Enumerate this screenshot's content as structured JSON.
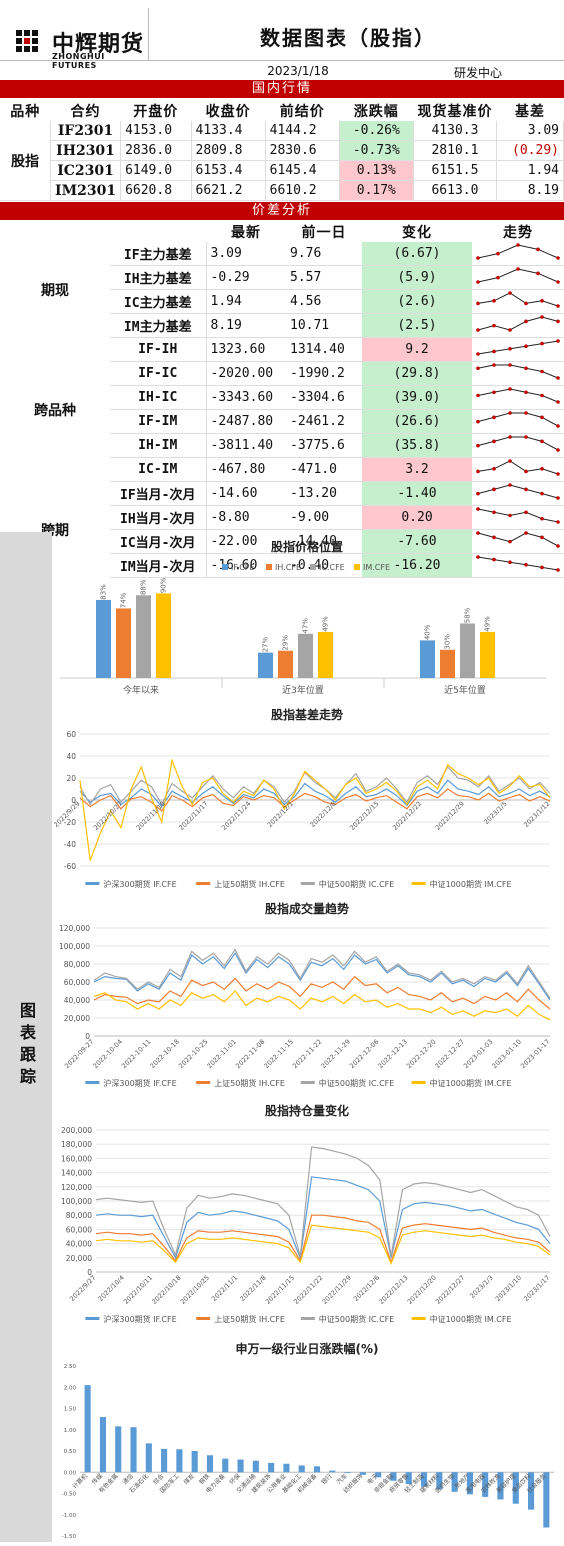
{
  "header": {
    "logo_cn": "中辉期货",
    "logo_en": "ZHONGHUI FUTURES",
    "title": "数据图表（股指）",
    "date": "2023/1/18",
    "dept": "研发中心"
  },
  "sections": {
    "domestic": "国内行情",
    "spread": "价差分析",
    "tracking": "图表跟踪"
  },
  "colors": {
    "red_bar": "#c00000",
    "green_cell": "#c6efce",
    "pink_cell": "#ffc7ce",
    "if": "#5b9bd5",
    "ih": "#ed7d31",
    "ic": "#a5a5a5",
    "im": "#ffc000"
  },
  "market": {
    "headers": [
      "品种",
      "合约",
      "开盘价",
      "收盘价",
      "前结价",
      "涨跌幅",
      "现货基准价",
      "基差"
    ],
    "group": "股指",
    "rows": [
      {
        "contract": "IF2301",
        "open": "4153.0",
        "close": "4133.4",
        "prev": "4144.2",
        "chg": "-0.26%",
        "spot": "4130.3",
        "basis": "3.09",
        "tone": "green",
        "neg": false
      },
      {
        "contract": "IH2301",
        "open": "2836.0",
        "close": "2809.8",
        "prev": "2830.6",
        "chg": "-0.73%",
        "spot": "2810.1",
        "basis": "(0.29)",
        "tone": "green",
        "neg": true
      },
      {
        "contract": "IC2301",
        "open": "6149.0",
        "close": "6153.4",
        "prev": "6145.4",
        "chg": "0.13%",
        "spot": "6151.5",
        "basis": "1.94",
        "tone": "pink",
        "neg": false
      },
      {
        "contract": "IM2301",
        "open": "6620.8",
        "close": "6621.2",
        "prev": "6610.2",
        "chg": "0.17%",
        "spot": "6613.0",
        "basis": "8.19",
        "tone": "pink",
        "neg": false
      }
    ]
  },
  "spread": {
    "headers": [
      "最新",
      "前一日",
      "变化",
      "走势"
    ],
    "groups": [
      {
        "label": "期现",
        "rows": [
          {
            "name": "IF主力基差",
            "latest": "3.09",
            "prev": "9.76",
            "chg": "(6.67)",
            "tone": "green",
            "trend": [
              3,
              4,
              6,
              5,
              3
            ]
          },
          {
            "name": "IH主力基差",
            "latest": "-0.29",
            "prev": "5.57",
            "chg": "(5.9)",
            "tone": "green",
            "trend": [
              3,
              4,
              6,
              5,
              3
            ]
          },
          {
            "name": "IC主力基差",
            "latest": "1.94",
            "prev": "4.56",
            "chg": "(2.6)",
            "tone": "green",
            "trend": [
              2,
              3,
              6,
              2,
              3,
              1
            ]
          },
          {
            "name": "IM主力基差",
            "latest": "8.19",
            "prev": "10.71",
            "chg": "(2.5)",
            "tone": "green",
            "trend": [
              2,
              3,
              2,
              4,
              5,
              4
            ]
          }
        ]
      },
      {
        "label": "跨品种",
        "rows": [
          {
            "name": "IF-IH",
            "latest": "1323.60",
            "prev": "1314.40",
            "chg": "9.2",
            "tone": "pink",
            "trend": [
              1,
              2,
              3,
              4,
              5,
              6
            ]
          },
          {
            "name": "IF-IC",
            "latest": "-2020.00",
            "prev": "-1990.2",
            "chg": "(29.8)",
            "tone": "green",
            "trend": [
              5,
              6,
              6,
              5,
              4,
              2
            ]
          },
          {
            "name": "IH-IC",
            "latest": "-3343.60",
            "prev": "-3304.6",
            "chg": "(39.0)",
            "tone": "green",
            "trend": [
              4,
              5,
              6,
              5,
              4,
              2
            ]
          },
          {
            "name": "IF-IM",
            "latest": "-2487.80",
            "prev": "-2461.2",
            "chg": "(26.6)",
            "tone": "green",
            "trend": [
              4,
              5,
              6,
              6,
              5,
              3
            ]
          },
          {
            "name": "IH-IM",
            "latest": "-3811.40",
            "prev": "-3775.6",
            "chg": "(35.8)",
            "tone": "green",
            "trend": [
              4,
              5,
              6,
              6,
              5,
              3
            ]
          },
          {
            "name": "IC-IM",
            "latest": "-467.80",
            "prev": "-471.0",
            "chg": "3.2",
            "tone": "pink",
            "trend": [
              2,
              3,
              6,
              2,
              3,
              1
            ]
          }
        ]
      },
      {
        "label": "跨期",
        "rows": [
          {
            "name": "IF当月-次月",
            "latest": "-14.60",
            "prev": "-13.20",
            "chg": "-1.40",
            "tone": "green",
            "trend": [
              4,
              5,
              6,
              5,
              4,
              3
            ]
          },
          {
            "name": "IH当月-次月",
            "latest": "-8.80",
            "prev": "-9.00",
            "chg": "0.20",
            "tone": "pink",
            "trend": [
              6,
              5,
              4,
              5,
              3,
              2
            ]
          },
          {
            "name": "IC当月-次月",
            "latest": "-22.00",
            "prev": "-14.40",
            "chg": "-7.60",
            "tone": "green",
            "trend": [
              6,
              5,
              4,
              6,
              5,
              3
            ]
          },
          {
            "name": "IM当月-次月",
            "latest": "-16.60",
            "prev": "-0.40",
            "chg": "-16.20",
            "tone": "green",
            "trend": [
              6,
              5,
              4,
              3,
              2,
              1
            ]
          }
        ]
      }
    ]
  },
  "chart_data": [
    {
      "type": "bar",
      "title": "股指价格位置",
      "series_names": [
        "IF.CFE",
        "IH.CFE",
        "IC.CFE",
        "IM.CFE"
      ],
      "groups": [
        "今年以来",
        "近3年位置",
        "近5年位置"
      ],
      "values": [
        [
          83,
          74,
          88,
          90
        ],
        [
          27,
          29,
          47,
          49
        ],
        [
          40,
          30,
          58,
          49
        ]
      ],
      "labels": [
        [
          "83%",
          "74%",
          "88%",
          "90%"
        ],
        [
          "27%",
          "29%",
          "47%",
          "49%"
        ],
        [
          "40%",
          "30%",
          "58%",
          "49%"
        ]
      ],
      "ylim": [
        0,
        100
      ]
    },
    {
      "type": "line",
      "title": "股指基差走势",
      "series_names": [
        "沪深300期货 IF.CFE",
        "上证50期货 IH.CFE",
        "中证500期货 IC.CFE",
        "中证1000期货 IM.CFE"
      ],
      "x_ticks": [
        "2022/9/29",
        "2022/10/27",
        "2022/11/10",
        "2022/11/17",
        "2022/11/24",
        "2022/12/1",
        "2022/12/8",
        "2022/12/15",
        "2022/12/22",
        "2022/12/29",
        "2023/1/5",
        "2023/1/12"
      ],
      "y_ticks": [
        "60",
        "40",
        "20",
        "0",
        "-20",
        "-40",
        "-60"
      ],
      "ylim": [
        -60,
        60
      ],
      "series": [
        [
          8,
          -2,
          4,
          6,
          -4,
          2,
          10,
          5,
          -6,
          8,
          3,
          -2,
          6,
          12,
          4,
          -3,
          5,
          2,
          10,
          6,
          -4,
          3,
          15,
          8,
          4,
          -2,
          6,
          12,
          3,
          5,
          10,
          4,
          -5,
          8,
          12,
          6,
          18,
          10,
          8,
          5,
          12,
          3,
          6,
          10,
          4,
          8,
          3
        ],
        [
          2,
          -6,
          0,
          4,
          -8,
          1,
          3,
          -2,
          -10,
          4,
          0,
          -6,
          2,
          5,
          -3,
          -5,
          3,
          0,
          4,
          2,
          -6,
          0,
          6,
          3,
          -2,
          -4,
          2,
          5,
          -1,
          2,
          4,
          -2,
          -8,
          3,
          6,
          2,
          10,
          4,
          3,
          0,
          6,
          -1,
          2,
          5,
          -1,
          3,
          -1
        ],
        [
          12,
          -4,
          10,
          14,
          -2,
          8,
          18,
          12,
          -4,
          15,
          8,
          2,
          12,
          22,
          10,
          2,
          12,
          6,
          18,
          12,
          -2,
          8,
          25,
          16,
          10,
          2,
          14,
          24,
          8,
          12,
          20,
          10,
          -2,
          16,
          22,
          14,
          30,
          20,
          18,
          12,
          22,
          8,
          14,
          20,
          10,
          16,
          6
        ],
        [
          18,
          -55,
          -30,
          -10,
          -25,
          10,
          30,
          2,
          -20,
          36,
          12,
          -4,
          16,
          20,
          6,
          -2,
          8,
          4,
          18,
          10,
          -8,
          6,
          26,
          18,
          10,
          0,
          14,
          20,
          6,
          10,
          16,
          8,
          -4,
          12,
          18,
          10,
          32,
          24,
          20,
          14,
          20,
          6,
          12,
          22,
          12,
          14,
          2
        ]
      ]
    },
    {
      "type": "line",
      "title": "股指成交量趋势",
      "series_names": [
        "沪深300期货 IF.CFE",
        "上证50期货 IH.CFE",
        "中证500期货 IC.CFE",
        "中证1000期货 IM.CFE"
      ],
      "x_ticks": [
        "2022-09-27",
        "2022-10-04",
        "2022-10-11",
        "2022-10-18",
        "2022-10-25",
        "2022-11-01",
        "2022-11-08",
        "2022-11-15",
        "2022-11-22",
        "2022-11-29",
        "2022-12-06",
        "2022-12-13",
        "2022-12-20",
        "2022-12-27",
        "2023-01-03",
        "2023-01-10",
        "2023-01-17"
      ],
      "y_ticks": [
        "120,000",
        "100,000",
        "80,000",
        "60,000",
        "40,000",
        "20,000",
        "0"
      ],
      "ylim": [
        0,
        120000
      ],
      "series": [
        [
          60000,
          66000,
          64000,
          63000,
          50000,
          58000,
          52000,
          70000,
          62000,
          90000,
          80000,
          88000,
          75000,
          92000,
          70000,
          85000,
          76000,
          88000,
          80000,
          62000,
          82000,
          78000,
          86000,
          74000,
          90000,
          80000,
          85000,
          70000,
          78000,
          68000,
          66000,
          60000,
          70000,
          58000,
          62000,
          55000,
          64000,
          60000,
          70000,
          56000,
          75000,
          58000,
          40000
        ],
        [
          40000,
          46000,
          44000,
          43000,
          36000,
          40000,
          38000,
          50000,
          44000,
          62000,
          56000,
          60000,
          52000,
          64000,
          50000,
          58000,
          52000,
          60000,
          55000,
          44000,
          58000,
          54000,
          60000,
          52000,
          66000,
          56000,
          58000,
          48000,
          54000,
          46000,
          44000,
          40000,
          48000,
          38000,
          42000,
          36000,
          44000,
          40000,
          48000,
          38000,
          52000,
          40000,
          30000
        ],
        [
          62000,
          70000,
          66000,
          64000,
          52000,
          60000,
          54000,
          74000,
          66000,
          94000,
          84000,
          92000,
          78000,
          96000,
          72000,
          88000,
          80000,
          92000,
          84000,
          64000,
          86000,
          82000,
          90000,
          78000,
          94000,
          82000,
          88000,
          72000,
          80000,
          70000,
          68000,
          62000,
          72000,
          60000,
          64000,
          58000,
          66000,
          62000,
          72000,
          58000,
          78000,
          60000,
          42000
        ],
        [
          44000,
          48000,
          40000,
          38000,
          30000,
          36000,
          30000,
          40000,
          34000,
          48000,
          42000,
          46000,
          38000,
          50000,
          34000,
          42000,
          38000,
          44000,
          40000,
          30000,
          42000,
          38000,
          44000,
          36000,
          46000,
          38000,
          40000,
          32000,
          36000,
          30000,
          30000,
          26000,
          32000,
          24000,
          28000,
          22000,
          28000,
          26000,
          30000,
          22000,
          34000,
          24000,
          18000
        ]
      ]
    },
    {
      "type": "line",
      "title": "股指持仓量变化",
      "series_names": [
        "沪深300期货 IF.CFE",
        "上证50期货 IH.CFE",
        "中证500期货 IC.CFE",
        "中证1000期货 IM.CFE"
      ],
      "x_ticks": [
        "2022/9/27",
        "2022/10/4",
        "2022/10/11",
        "2022/10/18",
        "2022/10/25",
        "2022/11/1",
        "2022/11/8",
        "2022/11/15",
        "2022/11/22",
        "2022/11/29",
        "2022/12/6",
        "2022/12/13",
        "2022/12/20",
        "2022/12/27",
        "2023/1/3",
        "2023/1/10",
        "2023/1/17"
      ],
      "y_ticks": [
        "200,000",
        "180,000",
        "160,000",
        "140,000",
        "120,000",
        "100,000",
        "80,000",
        "60,000",
        "40,000",
        "20,000",
        "0"
      ],
      "ylim": [
        0,
        200000
      ],
      "series": [
        [
          80000,
          82000,
          80000,
          80000,
          78000,
          80000,
          50000,
          20000,
          70000,
          84000,
          80000,
          82000,
          86000,
          84000,
          80000,
          76000,
          72000,
          60000,
          20000,
          134000,
          132000,
          130000,
          128000,
          122000,
          116000,
          100000,
          20000,
          88000,
          96000,
          98000,
          96000,
          94000,
          90000,
          86000,
          88000,
          82000,
          76000,
          70000,
          66000,
          60000,
          40000
        ],
        [
          54000,
          56000,
          54000,
          54000,
          52000,
          54000,
          36000,
          16000,
          48000,
          58000,
          56000,
          56000,
          58000,
          56000,
          54000,
          52000,
          50000,
          42000,
          16000,
          80000,
          80000,
          78000,
          76000,
          72000,
          70000,
          60000,
          14000,
          62000,
          66000,
          68000,
          66000,
          64000,
          62000,
          60000,
          62000,
          56000,
          52000,
          48000,
          46000,
          42000,
          28000
        ],
        [
          102000,
          104000,
          102000,
          100000,
          98000,
          100000,
          60000,
          24000,
          90000,
          108000,
          104000,
          106000,
          110000,
          108000,
          104000,
          100000,
          96000,
          80000,
          22000,
          176000,
          174000,
          170000,
          166000,
          160000,
          150000,
          130000,
          22000,
          116000,
          124000,
          126000,
          124000,
          120000,
          116000,
          112000,
          116000,
          108000,
          100000,
          92000,
          88000,
          80000,
          50000
        ],
        [
          44000,
          46000,
          44000,
          44000,
          42000,
          44000,
          30000,
          14000,
          40000,
          48000,
          46000,
          46000,
          48000,
          46000,
          44000,
          42000,
          40000,
          34000,
          14000,
          66000,
          64000,
          62000,
          60000,
          58000,
          56000,
          48000,
          12000,
          52000,
          56000,
          58000,
          56000,
          54000,
          52000,
          50000,
          52000,
          48000,
          46000,
          42000,
          40000,
          36000,
          24000
        ]
      ]
    },
    {
      "type": "bar",
      "title": "申万一级行业日涨跌幅(%)",
      "y_ticks": [
        "2.50",
        "2.00",
        "1.50",
        "1.00",
        "0.50",
        "0.00",
        "-0.50",
        "-1.00",
        "-1.50"
      ],
      "ylim": [
        -1.5,
        2.5
      ],
      "categories": [
        "计算机",
        "传媒",
        "有色金属",
        "通信",
        "石油石化",
        "综合",
        "国防军工",
        "煤炭",
        "钢铁",
        "电力设备",
        "环保",
        "交通运输",
        "建筑装饰",
        "公用事业",
        "基础化工",
        "机械设备",
        "银行",
        "汽车",
        "纺织服饰",
        "电子",
        "非银金融",
        "商贸零售",
        "轻工制造",
        "建筑材料",
        "医药生物",
        "房地产",
        "家用电器",
        "农林牧渔",
        "美容护理",
        "食品饮料",
        "社会服务"
      ],
      "values": [
        2.05,
        1.3,
        1.08,
        1.06,
        0.68,
        0.55,
        0.54,
        0.5,
        0.4,
        0.32,
        0.3,
        0.27,
        0.22,
        0.2,
        0.16,
        0.14,
        0.04,
        -0.02,
        -0.06,
        -0.12,
        -0.2,
        -0.28,
        -0.34,
        -0.4,
        -0.46,
        -0.52,
        -0.58,
        -0.64,
        -0.74,
        -0.88,
        -1.3
      ]
    }
  ]
}
